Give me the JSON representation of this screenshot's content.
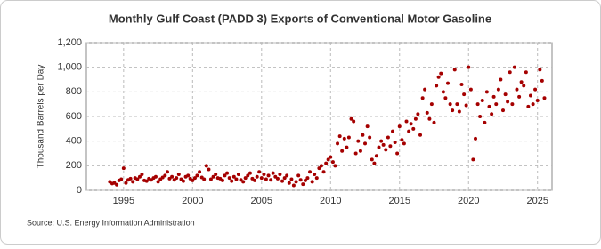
{
  "chart_data": {
    "type": "scatter",
    "title": "Monthly Gulf Coast (PADD 3) Exports of Conventional Motor Gasoline",
    "y_label": "Thousand Barrels per Day",
    "source": "Source: U.S. Energy Information Administration",
    "color": "#a50000",
    "grid": true,
    "xlim": [
      1992.3,
      2026.05
    ],
    "xticks": [
      1995,
      2000,
      2005,
      2010,
      2015,
      2020,
      2025
    ],
    "ylim": [
      0,
      1200
    ],
    "yticks": [
      0,
      200,
      400,
      600,
      800,
      {
        "value": 1000,
        "label": "1,000"
      },
      {
        "value": 1200,
        "label": "1,200"
      }
    ],
    "x": [
      1994,
      1994.17,
      1994.33,
      1994.5,
      1994.67,
      1994.83,
      1995,
      1995.17,
      1995.33,
      1995.5,
      1995.67,
      1995.83,
      1996,
      1996.17,
      1996.33,
      1996.5,
      1996.67,
      1996.83,
      1997,
      1997.17,
      1997.33,
      1997.5,
      1997.67,
      1997.83,
      1998,
      1998.17,
      1998.33,
      1998.5,
      1998.67,
      1998.83,
      1999,
      1999.17,
      1999.33,
      1999.5,
      1999.67,
      1999.83,
      2000,
      2000.17,
      2000.33,
      2000.5,
      2000.67,
      2000.83,
      2001,
      2001.17,
      2001.33,
      2001.5,
      2001.67,
      2001.83,
      2002,
      2002.17,
      2002.33,
      2002.5,
      2002.67,
      2002.83,
      2003,
      2003.17,
      2003.33,
      2003.5,
      2003.67,
      2003.83,
      2004,
      2004.17,
      2004.33,
      2004.5,
      2004.67,
      2004.83,
      2005,
      2005.17,
      2005.33,
      2005.5,
      2005.67,
      2005.83,
      2006,
      2006.17,
      2006.33,
      2006.5,
      2006.67,
      2006.83,
      2007,
      2007.17,
      2007.33,
      2007.5,
      2007.67,
      2007.83,
      2008,
      2008.17,
      2008.33,
      2008.5,
      2008.67,
      2008.83,
      2009,
      2009.17,
      2009.33,
      2009.5,
      2009.67,
      2009.83,
      2010,
      2010.17,
      2010.33,
      2010.5,
      2010.67,
      2010.83,
      2011,
      2011.17,
      2011.33,
      2011.5,
      2011.67,
      2011.83,
      2012,
      2012.17,
      2012.33,
      2012.5,
      2012.67,
      2012.83,
      2013,
      2013.17,
      2013.33,
      2013.5,
      2013.67,
      2013.83,
      2014,
      2014.17,
      2014.33,
      2014.5,
      2014.67,
      2014.83,
      2015,
      2015.17,
      2015.33,
      2015.5,
      2015.67,
      2015.83,
      2016,
      2016.17,
      2016.33,
      2016.5,
      2016.67,
      2016.83,
      2017,
      2017.17,
      2017.33,
      2017.5,
      2017.67,
      2017.83,
      2018,
      2018.17,
      2018.33,
      2018.5,
      2018.67,
      2018.83,
      2019,
      2019.17,
      2019.33,
      2019.5,
      2019.67,
      2019.83,
      2020,
      2020.17,
      2020.33,
      2020.5,
      2020.67,
      2020.83,
      2021,
      2021.17,
      2021.33,
      2021.5,
      2021.67,
      2021.83,
      2022,
      2022.17,
      2022.33,
      2022.5,
      2022.67,
      2022.83,
      2023,
      2023.17,
      2023.33,
      2023.5,
      2023.67,
      2023.83,
      2024,
      2024.17,
      2024.33,
      2024.5,
      2024.67,
      2024.83,
      2025,
      2025.17,
      2025.33,
      2025.5
    ],
    "values": [
      70,
      55,
      60,
      45,
      80,
      90,
      180,
      60,
      85,
      95,
      70,
      100,
      90,
      110,
      130,
      80,
      75,
      95,
      85,
      100,
      110,
      70,
      90,
      105,
      120,
      150,
      95,
      110,
      85,
      100,
      130,
      90,
      75,
      110,
      120,
      95,
      80,
      100,
      120,
      150,
      105,
      90,
      200,
      170,
      90,
      110,
      130,
      100,
      95,
      80,
      120,
      140,
      100,
      75,
      110,
      90,
      130,
      85,
      70,
      100,
      120,
      140,
      95,
      80,
      110,
      150,
      100,
      130,
      90,
      120,
      85,
      140,
      110,
      95,
      130,
      75,
      100,
      120,
      60,
      90,
      40,
      70,
      120,
      85,
      50,
      80,
      100,
      150,
      70,
      130,
      100,
      180,
      200,
      150,
      220,
      250,
      270,
      230,
      200,
      380,
      440,
      320,
      420,
      350,
      430,
      580,
      560,
      300,
      400,
      320,
      450,
      380,
      520,
      430,
      250,
      220,
      280,
      350,
      400,
      370,
      330,
      430,
      360,
      480,
      390,
      300,
      520,
      410,
      380,
      560,
      480,
      540,
      500,
      580,
      620,
      450,
      750,
      820,
      630,
      580,
      700,
      550,
      850,
      920,
      950,
      800,
      750,
      870,
      700,
      650,
      980,
      700,
      640,
      860,
      780,
      690,
      1000,
      820,
      250,
      420,
      700,
      600,
      730,
      550,
      800,
      680,
      620,
      760,
      700,
      820,
      900,
      650,
      780,
      720,
      960,
      700,
      1000,
      820,
      760,
      880,
      850,
      960,
      680,
      770,
      700,
      820,
      730,
      980,
      890,
      750
    ]
  }
}
